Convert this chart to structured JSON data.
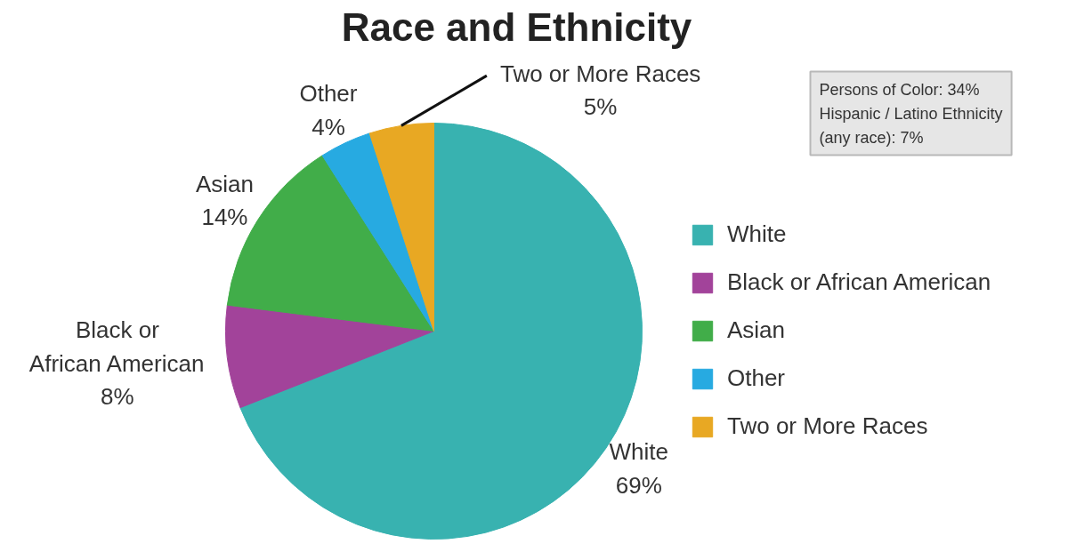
{
  "chart_data": {
    "type": "pie",
    "title": "Race and Ethnicity",
    "categories": [
      "White",
      "Black or African American",
      "Asian",
      "Other",
      "Two or More Races"
    ],
    "values": [
      69,
      8,
      14,
      4,
      5
    ],
    "colors": [
      "#38b2b0",
      "#a2439a",
      "#41ad49",
      "#27aae1",
      "#e8a823"
    ],
    "value_labels": [
      "69%",
      "8%",
      "14%",
      "4%",
      "5%"
    ],
    "legend": "right",
    "annotations": [
      "Persons of Color: 34%",
      "Hispanic / Latino Ethnicity (any race): 7%"
    ]
  }
}
